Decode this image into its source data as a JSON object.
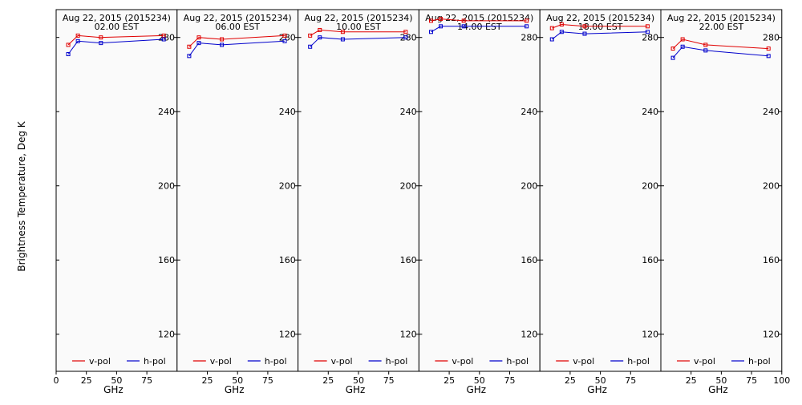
{
  "figure": {
    "ylabel": "Brightness Temperature, Deg K",
    "xlabel": "GHz"
  },
  "colors": {
    "v_pol": "#e00000",
    "h_pol": "#0000cc",
    "panel_bg": "#fafafa",
    "axis": "#000000"
  },
  "chart_data": [
    {
      "type": "line",
      "title": "Aug 22, 2015 (2015234)",
      "subtitle": "02.00 EST",
      "xlabel": "GHz",
      "ylabel": "Brightness Temperature, Deg K",
      "xlim": [
        0,
        100
      ],
      "ylim": [
        100,
        295
      ],
      "xticks": [
        0,
        25,
        50,
        75
      ],
      "yticks": [
        120,
        160,
        200,
        240,
        280
      ],
      "legend": "bottom",
      "series": [
        {
          "name": "v-pol",
          "color": "#e00000",
          "x": [
            10,
            18,
            37,
            89
          ],
          "y": [
            276,
            281,
            280,
            281
          ]
        },
        {
          "name": "h-pol",
          "color": "#0000cc",
          "x": [
            10,
            18,
            37,
            89
          ],
          "y": [
            271,
            278,
            277,
            279
          ]
        }
      ]
    },
    {
      "type": "line",
      "title": "Aug 22, 2015 (2015234)",
      "subtitle": "06.00 EST",
      "xlabel": "GHz",
      "ylabel": "Brightness Temperature, Deg K",
      "xlim": [
        0,
        100
      ],
      "ylim": [
        100,
        295
      ],
      "xticks": [
        25,
        50,
        75
      ],
      "yticks": [
        120,
        160,
        200,
        240,
        280
      ],
      "legend": "bottom",
      "series": [
        {
          "name": "v-pol",
          "color": "#e00000",
          "x": [
            10,
            18,
            37,
            89
          ],
          "y": [
            275,
            280,
            279,
            281
          ]
        },
        {
          "name": "h-pol",
          "color": "#0000cc",
          "x": [
            10,
            18,
            37,
            89
          ],
          "y": [
            270,
            277,
            276,
            278
          ]
        }
      ]
    },
    {
      "type": "line",
      "title": "Aug 22, 2015 (2015234)",
      "subtitle": "10.00 EST",
      "xlabel": "GHz",
      "ylabel": "Brightness Temperature, Deg K",
      "xlim": [
        0,
        100
      ],
      "ylim": [
        100,
        295
      ],
      "xticks": [
        25,
        50,
        75
      ],
      "yticks": [
        120,
        160,
        200,
        240,
        280
      ],
      "legend": "bottom",
      "series": [
        {
          "name": "v-pol",
          "color": "#e00000",
          "x": [
            10,
            18,
            37,
            89
          ],
          "y": [
            281,
            284,
            283,
            283
          ]
        },
        {
          "name": "h-pol",
          "color": "#0000cc",
          "x": [
            10,
            18,
            37,
            89
          ],
          "y": [
            275,
            280,
            279,
            280
          ]
        }
      ]
    },
    {
      "type": "line",
      "title": "Aug 22, 2015 (2015234)",
      "subtitle": "14.00 EST",
      "xlabel": "GHz",
      "ylabel": "Brightness Temperature, Deg K",
      "xlim": [
        0,
        100
      ],
      "ylim": [
        100,
        295
      ],
      "xticks": [
        25,
        50,
        75
      ],
      "yticks": [
        120,
        160,
        200,
        240,
        280
      ],
      "legend": "bottom",
      "series": [
        {
          "name": "v-pol",
          "color": "#e00000",
          "x": [
            10,
            18,
            37,
            89
          ],
          "y": [
            289,
            290,
            289,
            289
          ]
        },
        {
          "name": "h-pol",
          "color": "#0000cc",
          "x": [
            10,
            18,
            37,
            89
          ],
          "y": [
            283,
            286,
            286,
            286
          ]
        }
      ]
    },
    {
      "type": "line",
      "title": "Aug 22, 2015 (2015234)",
      "subtitle": "18.00 EST",
      "xlabel": "GHz",
      "ylabel": "Brightness Temperature, Deg K",
      "xlim": [
        0,
        100
      ],
      "ylim": [
        100,
        295
      ],
      "xticks": [
        25,
        50,
        75
      ],
      "yticks": [
        120,
        160,
        200,
        240,
        280
      ],
      "legend": "bottom",
      "series": [
        {
          "name": "v-pol",
          "color": "#e00000",
          "x": [
            10,
            18,
            37,
            89
          ],
          "y": [
            285,
            287,
            286,
            286
          ]
        },
        {
          "name": "h-pol",
          "color": "#0000cc",
          "x": [
            10,
            18,
            37,
            89
          ],
          "y": [
            279,
            283,
            282,
            283
          ]
        }
      ]
    },
    {
      "type": "line",
      "title": "Aug 22, 2015 (2015234)",
      "subtitle": "22.00 EST",
      "xlabel": "GHz",
      "ylabel": "Brightness Temperature, Deg K",
      "xlim": [
        0,
        100
      ],
      "ylim": [
        100,
        295
      ],
      "xticks": [
        25,
        50,
        75,
        100
      ],
      "yticks": [
        120,
        160,
        200,
        240,
        280
      ],
      "legend": "bottom",
      "series": [
        {
          "name": "v-pol",
          "color": "#e00000",
          "x": [
            10,
            18,
            37,
            89
          ],
          "y": [
            274,
            279,
            276,
            274
          ]
        },
        {
          "name": "h-pol",
          "color": "#0000cc",
          "x": [
            10,
            18,
            37,
            89
          ],
          "y": [
            269,
            275,
            273,
            270
          ]
        }
      ]
    }
  ]
}
